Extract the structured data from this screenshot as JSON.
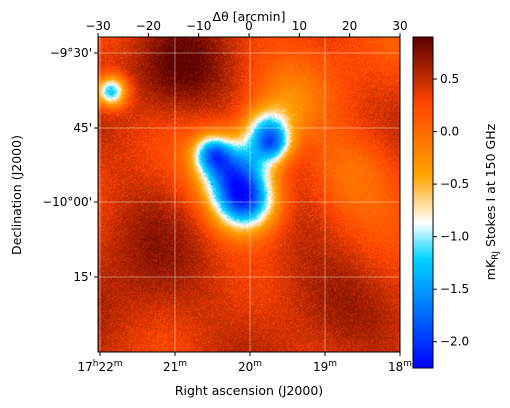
{
  "chart_data": {
    "type": "heatmap",
    "title": "",
    "colormap": "blue-cyan-white-orange-darkred",
    "colormap_stops": [
      "#0000ff",
      "#0077ff",
      "#00d4ff",
      "#ffffff",
      "#ffa500",
      "#ff4500",
      "#5a0000"
    ],
    "grid": true,
    "grid_color": "#ffffff",
    "xlabel_bottom": "Right ascension (J2000)",
    "ylabel_left": "Declination (J2000)",
    "xlabel_top": "Δθ [arcmin]",
    "colorbar_label": "mK_RJ Stokes I at 150 GHz",
    "colorbar_label_parts": {
      "unit": "mK",
      "unit_sub": "RJ",
      "rest": " Stokes I at 150 GHz"
    },
    "top_axis": {
      "range": [
        -30,
        30
      ],
      "ticks": [
        -30,
        -20,
        -10,
        0,
        10,
        20,
        30
      ],
      "tick_labels": [
        "−30",
        "−20",
        "−10",
        "0",
        "10",
        "20",
        "30"
      ]
    },
    "bottom_axis": {
      "ticks": [
        {
          "h": "17",
          "m": "22"
        },
        {
          "h": "",
          "m": "21"
        },
        {
          "h": "",
          "m": "20"
        },
        {
          "h": "",
          "m": "19"
        },
        {
          "h": "",
          "m": "18"
        }
      ],
      "h_suffix": "h",
      "m_suffix": "m"
    },
    "left_axis": {
      "tick_labels": [
        "−9°30'",
        "45'",
        "−10°00'",
        "15'"
      ]
    },
    "colorbar": {
      "range": [
        -2.25,
        0.9
      ],
      "ticks": [
        0.5,
        0.0,
        -0.5,
        -1.0,
        -1.5,
        -2.0
      ],
      "tick_labels": [
        "0.5",
        "0.0",
        "−0.5",
        "−1.0",
        "−1.5",
        "−2.0"
      ]
    },
    "features": [
      {
        "name": "main-cold-decrement",
        "dtheta_x": -1,
        "dtheta_y": -0.7,
        "value": -2.1
      },
      {
        "name": "extended-cold-structure",
        "dtheta_x": -5,
        "dtheta_y": 6,
        "value": -1.0
      },
      {
        "name": "cold-spot-upper-left",
        "dtheta_x": -27.5,
        "dtheta_y": 20.7,
        "value": -1.4
      },
      {
        "name": "cold-arc-upper",
        "dtheta_x": 3.5,
        "dtheta_y": 13,
        "value": -0.9
      },
      {
        "name": "hot-region-upper-left",
        "dtheta_x": -15,
        "dtheta_y": 24,
        "value": 0.8
      },
      {
        "name": "warm-region-lower-left",
        "dtheta_x": -22,
        "dtheta_y": -12,
        "value": 0.5
      }
    ]
  }
}
